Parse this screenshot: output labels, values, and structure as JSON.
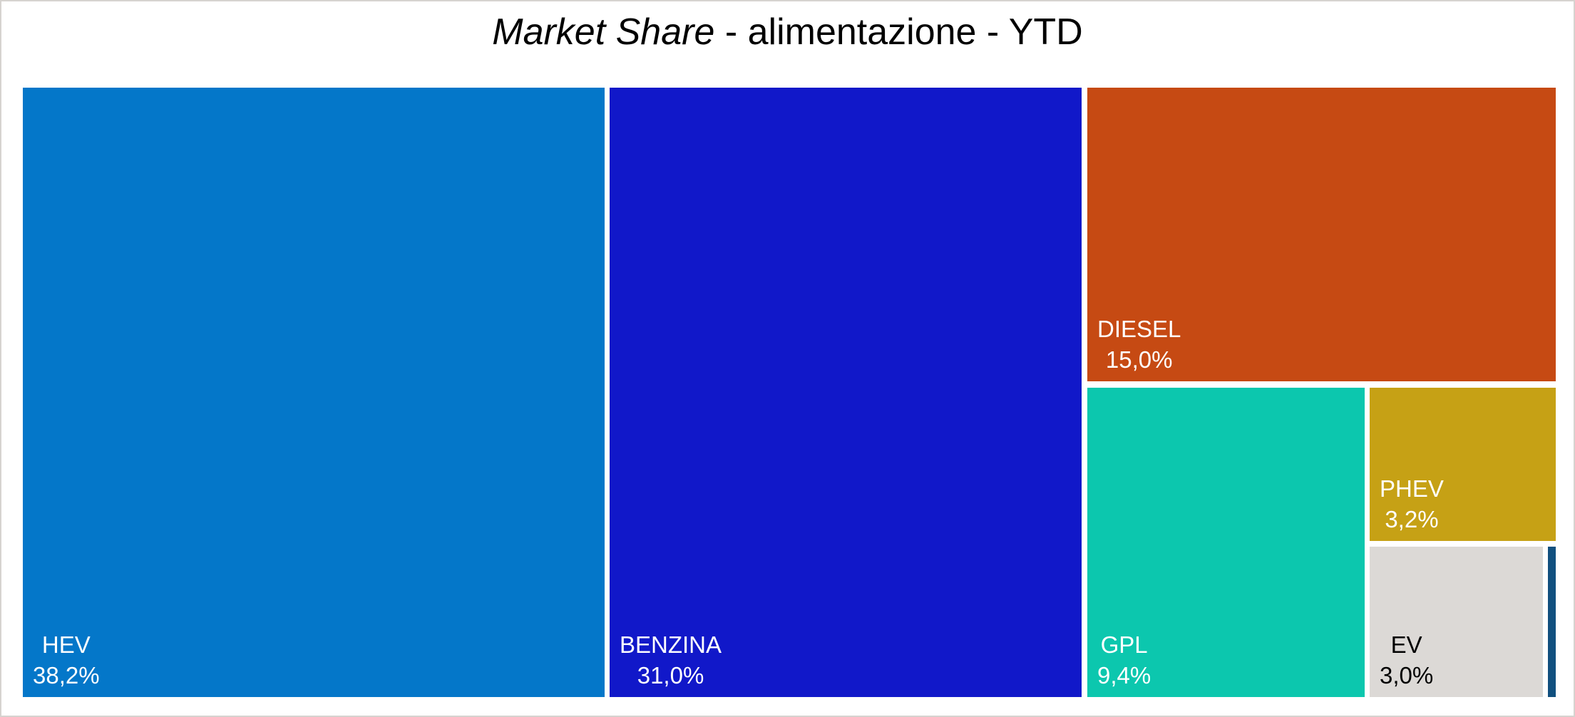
{
  "chart_data": {
    "type": "treemap",
    "title": "Market Share - alimentazione - YTD",
    "title_italic": "Market Share",
    "title_rest": " - alimentazione - YTD",
    "legend": "none",
    "segments": [
      {
        "label": "HEV",
        "value": 38.2,
        "value_label": "38,2%",
        "color": "#0477c9",
        "text_color": "#ffffff"
      },
      {
        "label": "BENZINA",
        "value": 31.0,
        "value_label": "31,0%",
        "color": "#1118c9",
        "text_color": "#ffffff"
      },
      {
        "label": "DIESEL",
        "value": 15.0,
        "value_label": "15,0%",
        "color": "#c64a13",
        "text_color": "#ffffff"
      },
      {
        "label": "GPL",
        "value": 9.4,
        "value_label": "9,4%",
        "color": "#0cc7ae",
        "text_color": "#ffffff"
      },
      {
        "label": "PHEV",
        "value": 3.2,
        "value_label": "3,2%",
        "color": "#c6a115",
        "text_color": "#ffffff"
      },
      {
        "label": "EV",
        "value": 3.0,
        "value_label": "3,0%",
        "color": "#dcd9d6",
        "text_color": "#000000"
      },
      {
        "label": "",
        "value": 0.2,
        "value_label": "",
        "color": "#11507f",
        "text_color": "#ffffff"
      }
    ]
  }
}
